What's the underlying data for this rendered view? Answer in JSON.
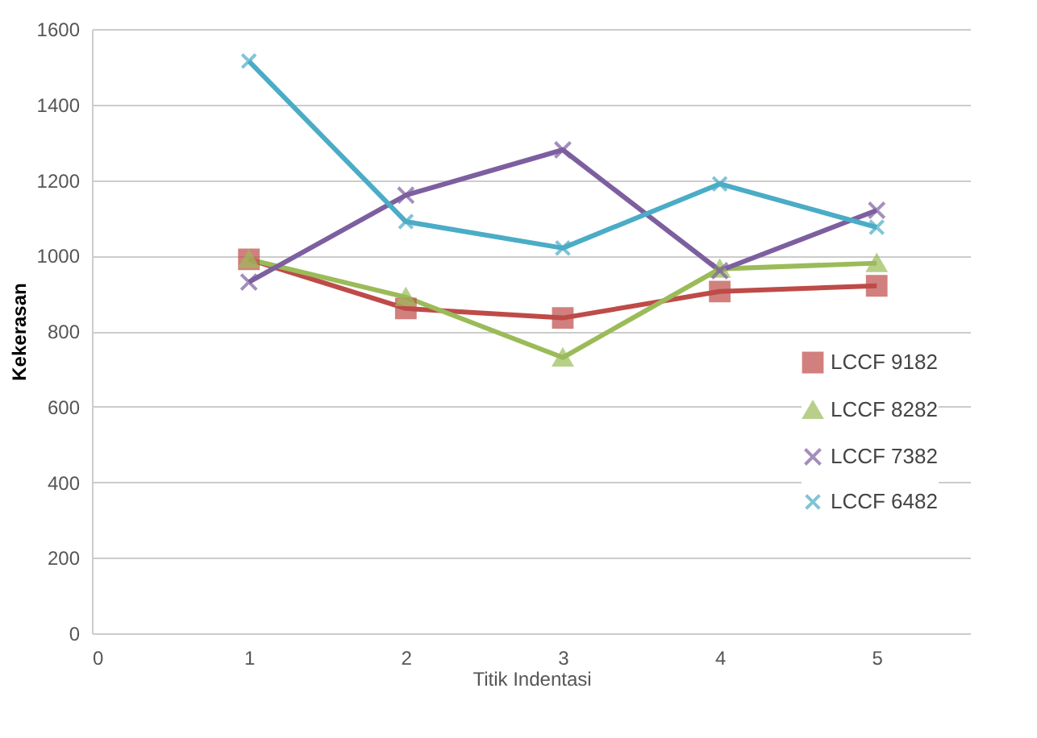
{
  "chart_data": {
    "type": "line",
    "xlabel": "Titik Indentasi",
    "ylabel": "Kekerasan",
    "x": [
      1,
      2,
      3,
      4,
      5
    ],
    "series": [
      {
        "name": "LCCF 9182",
        "color": "#be4b48",
        "marker": "square",
        "values": [
          990,
          860,
          835,
          905,
          920
        ]
      },
      {
        "name": "LCCF 8282",
        "color": "#9bbb59",
        "marker": "triangle",
        "values": [
          990,
          890,
          730,
          965,
          980
        ]
      },
      {
        "name": "LCCF 7382",
        "color": "#7d5fa0",
        "marker": "cross",
        "values": [
          930,
          1160,
          1280,
          960,
          1120
        ]
      },
      {
        "name": "LCCF 6482",
        "color": "#4bacc6",
        "marker": "cross",
        "values": [
          1515,
          1090,
          1020,
          1190,
          1075
        ]
      }
    ],
    "xlim": [
      0,
      5.6
    ],
    "xticks": [
      0,
      1,
      2,
      3,
      4,
      5
    ],
    "ylim": [
      0,
      1600
    ],
    "yticks": [
      0,
      200,
      400,
      600,
      800,
      1000,
      1200,
      1400,
      1600
    ],
    "grid": "y",
    "legend": "right",
    "line_style": "solid"
  }
}
